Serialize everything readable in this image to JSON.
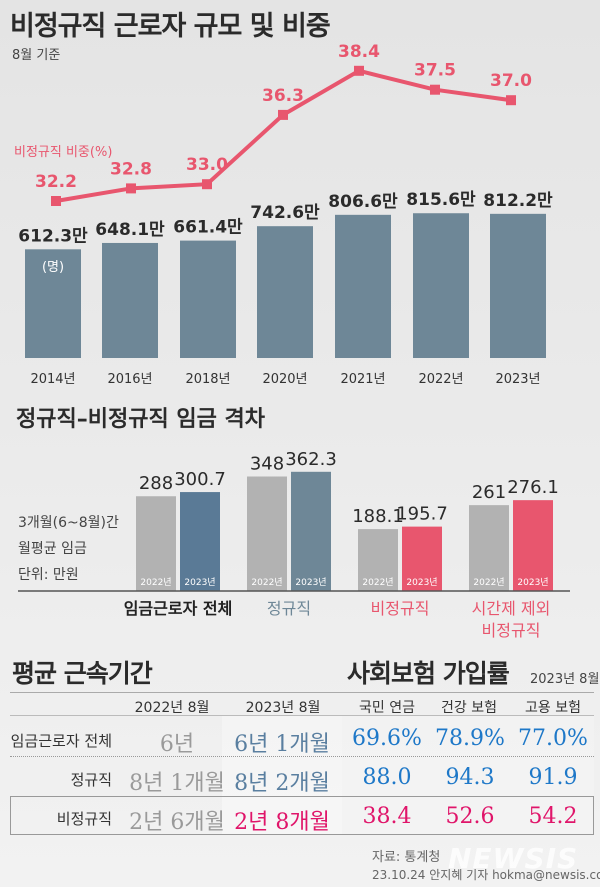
{
  "title": "비정규직 근로자 규모 및 비중",
  "subtitle": "8월 기준",
  "chart_data": [
    {
      "type": "bar+line",
      "categories": [
        "2014년",
        "2016년",
        "2018년",
        "2020년",
        "2021년",
        "2022년",
        "2023년"
      ],
      "bar_series": {
        "values": [
          612.3,
          648.1,
          661.4,
          742.6,
          806.6,
          815.6,
          812.2
        ],
        "labels": [
          "612.3만",
          "648.1만",
          "661.4만",
          "742.6만",
          "806.6만",
          "815.6만",
          "812.2만"
        ],
        "unit": "(명)",
        "color": "#6e8797"
      },
      "line_series": {
        "name": "비정규직 비중(%)",
        "values": [
          32.2,
          32.8,
          33.0,
          36.3,
          38.4,
          37.5,
          37.0
        ],
        "labels": [
          "32.2",
          "32.8",
          "33.0",
          "36.3",
          "38.4",
          "37.5",
          "37.0"
        ],
        "color": "#e8566e"
      }
    },
    {
      "type": "bar",
      "title": "정규직–비정규직 임금 격차",
      "note": [
        "3개월(6~8월)간",
        "월평균 임금",
        "단위: 만원"
      ],
      "categories": [
        "임금근로자 전체",
        "정규직",
        "비정규직",
        "시간제 제외 비정규직"
      ],
      "category_lines": [
        [
          "임금근로자 전체"
        ],
        [
          "정규직"
        ],
        [
          "비정규직"
        ],
        [
          "시간제 제외",
          "비정규직"
        ]
      ],
      "category_colors": [
        "#222222",
        "#6e8797",
        "#e8566e",
        "#e8566e"
      ],
      "series": [
        {
          "name": "2022년",
          "values": [
            288,
            348,
            188.1,
            261
          ],
          "labels": [
            "288",
            "348",
            "188.1",
            "261"
          ],
          "colors": [
            "#b2b2b2",
            "#b2b2b2",
            "#b2b2b2",
            "#b2b2b2"
          ]
        },
        {
          "name": "2023년",
          "values": [
            300.7,
            362.3,
            195.7,
            276.1
          ],
          "labels": [
            "300.7",
            "362.3",
            "195.7",
            "276.1"
          ],
          "colors": [
            "#5a7a96",
            "#6e8797",
            "#e8566e",
            "#e8566e"
          ]
        }
      ]
    }
  ],
  "tenure": {
    "title": "평균 근속기간",
    "headers": [
      "2022년 8월",
      "2023년 8월"
    ],
    "rows": [
      {
        "label": "임금근로자 전체",
        "y2022": "6년",
        "y2023": "6년 1개월"
      },
      {
        "label": "정규직",
        "y2022": "8년 1개월",
        "y2023": "8년 2개월"
      },
      {
        "label": "비정규직",
        "y2022": "2년 6개월",
        "y2023": "2년 8개월"
      }
    ]
  },
  "insurance": {
    "title": "사회보험 가입률",
    "date": "2023년 8월",
    "headers": [
      "국민 연금",
      "건강 보험",
      "고용 보험"
    ],
    "rows": [
      [
        "69.6%",
        "78.9%",
        "77.0%"
      ],
      [
        "88.0",
        "94.3",
        "91.9"
      ],
      [
        "38.4",
        "52.6",
        "54.2"
      ]
    ]
  },
  "footer": {
    "source": "자료: 통계청",
    "credit": "23.10.24 안지혜 기자 hokma@newsis.com",
    "logo": "NEWSIS"
  }
}
